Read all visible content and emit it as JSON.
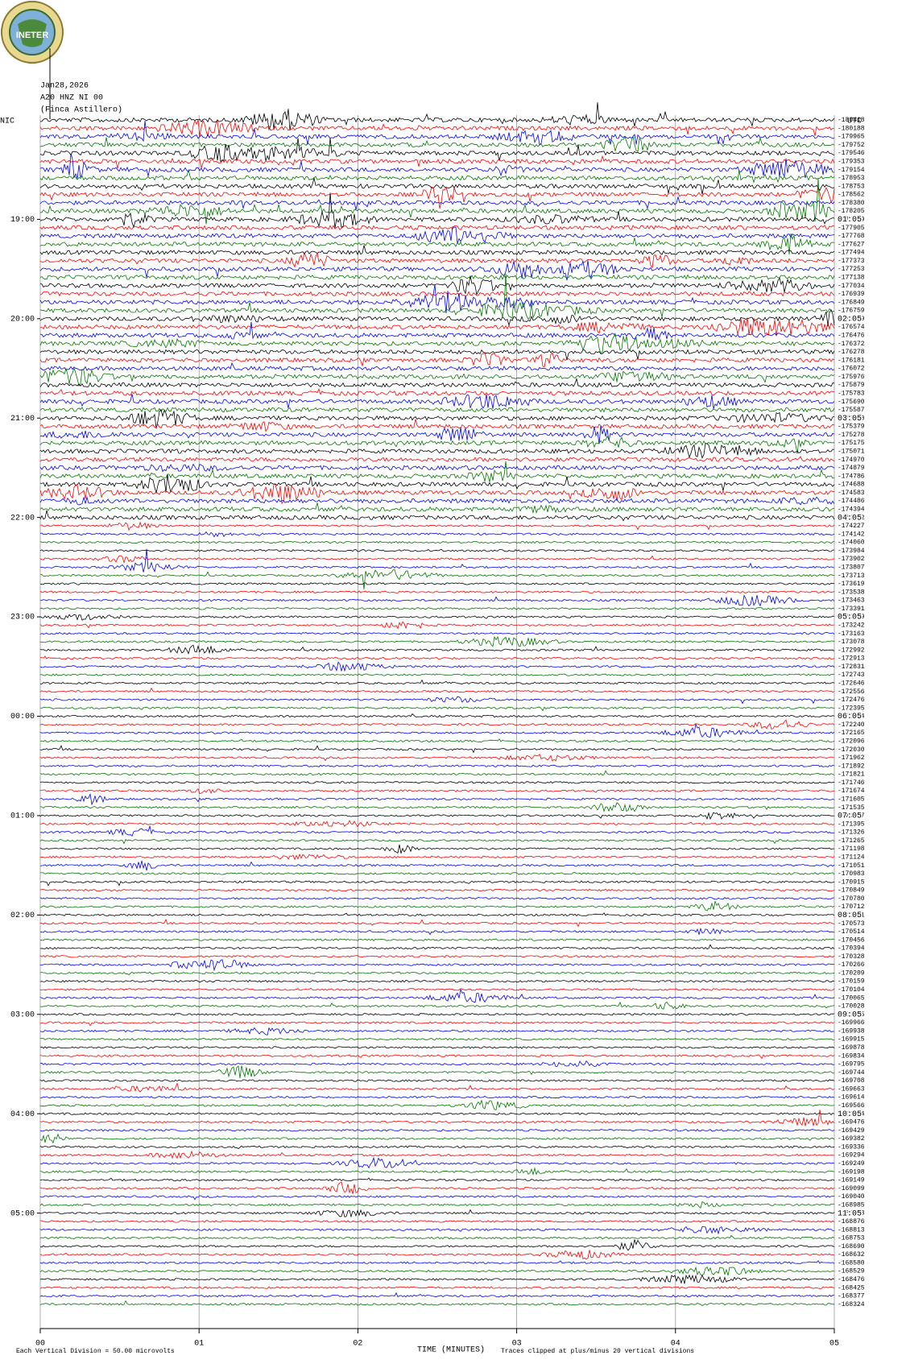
{
  "chart_data": {
    "type": "helicorder",
    "logo": "INETER",
    "date": "Jan28,2026",
    "station": "A20 HNZ NI 00",
    "site": "(Finca Astillero)",
    "left_zone": "NIC",
    "right_zone": "UTC",
    "left_time_labels": [
      "19:00",
      "20:00",
      "21:00",
      "22:00",
      "23:00",
      "00:00",
      "01:00",
      "02:00",
      "03:00",
      "04:00",
      "05:00"
    ],
    "right_time_labels": [
      "01:05",
      "02:05",
      "03:05",
      "04:05",
      "05:05",
      "06:05",
      "07:05",
      "08:05",
      "09:05",
      "10:05",
      "11:05"
    ],
    "trace_offsets": [
      -180418,
      -180188,
      -179965,
      -179752,
      -179546,
      -179353,
      -179154,
      -178953,
      -178753,
      -178562,
      -178380,
      -178205,
      -178049,
      -177905,
      -177768,
      -177627,
      -177494,
      -177373,
      -177253,
      -177138,
      -177034,
      -176939,
      -176849,
      -176759,
      -176669,
      -176574,
      -176476,
      -176372,
      -176278,
      -176181,
      -176072,
      -175976,
      -175879,
      -175783,
      -175690,
      -175587,
      -175480,
      -175379,
      -175278,
      -175175,
      -175071,
      -174970,
      -174879,
      -174786,
      -174688,
      -174583,
      -174486,
      -174394,
      -174312,
      -174227,
      -174142,
      -174060,
      -173984,
      -173902,
      -173807,
      -173713,
      -173619,
      -173538,
      -173463,
      -173391,
      -173319,
      -173242,
      -173163,
      -173078,
      -172992,
      -172913,
      -172831,
      -172743,
      -172646,
      -172556,
      -172476,
      -172395,
      -172314,
      -172240,
      -172165,
      -172096,
      -172030,
      -171962,
      -171892,
      -171821,
      -171746,
      -171674,
      -171605,
      -171535,
      -171467,
      -171395,
      -171326,
      -171265,
      -171198,
      -171124,
      -171051,
      -170983,
      -170915,
      -170849,
      -170780,
      -170712,
      -170641,
      -170573,
      -170514,
      -170456,
      -170394,
      -170328,
      -170266,
      -170209,
      -170159,
      -170104,
      -170065,
      -170028,
      -169995,
      -169966,
      -169938,
      -169915,
      -169878,
      -169834,
      -169795,
      -169744,
      -169708,
      -169663,
      -169614,
      -169566,
      -169524,
      -169476,
      -169429,
      -169382,
      -169336,
      -169294,
      -169249,
      -169198,
      -169149,
      -169099,
      -169040,
      -168985,
      -168933,
      -168876,
      -168813,
      -168753,
      -168690,
      -168632,
      -168580,
      -168529,
      -168476,
      -168425,
      -168377,
      -168324
    ],
    "trace_colors": [
      "#000000",
      "#ff0000",
      "#0000ff",
      "#007700"
    ],
    "xlim": [
      0,
      5
    ],
    "xticks": [
      {
        "value": 0,
        "label": "00"
      },
      {
        "value": 1,
        "label": "01"
      },
      {
        "value": 2,
        "label": "02"
      },
      {
        "value": 3,
        "label": "03"
      },
      {
        "value": 4,
        "label": "04"
      },
      {
        "value": 5,
        "label": "05"
      }
    ],
    "x_label": "TIME (MINUTES)",
    "scale_note": "Each Vertical Division =   50.00 microvolts",
    "clip_note": "Traces clipped at plus/minus 20 vertical divisions",
    "grid": true
  }
}
